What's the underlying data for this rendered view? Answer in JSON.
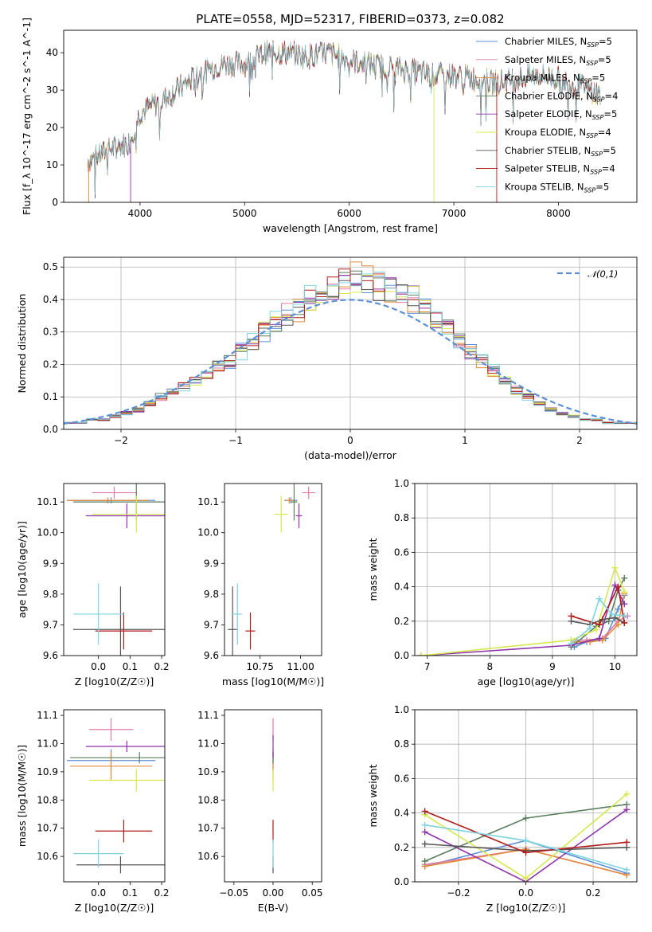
{
  "title": "PLATE=0558, MJD=52317, FIBERID=0373, z=0.082",
  "colors": {
    "Chabrier MILES": "#5b8fd6",
    "Salpeter MILES": "#e07aa6",
    "Kroupa MILES": "#e58a3a",
    "Chabrier ELODIE": "#5a7f5e",
    "Salpeter ELODIE": "#8e33a8",
    "Kroupa ELODIE": "#d7e84f",
    "Chabrier STELIB": "#555555",
    "Salpeter STELIB": "#b01c1c",
    "Kroupa STELIB": "#7ed3df"
  },
  "chart_data": [
    {
      "id": "spectrum",
      "type": "line",
      "xlabel": "wavelength [Angstrom, rest frame]",
      "ylabel": "Flux [f_λ 10^-17 erg cm^-2 s^-1 A^-1]",
      "xlim": [
        3270,
        8750
      ],
      "ylim": [
        0,
        46
      ],
      "xticks": [
        4000,
        5000,
        6000,
        7000,
        8000
      ],
      "yticks": [
        0,
        10,
        20,
        30,
        40
      ],
      "legend_position": "upper-right",
      "legend": [
        "Chabrier MILES, N_SSP=5",
        "Salpeter MILES, N_SSP=5",
        "Kroupa MILES, N_SSP=5",
        "Chabrier ELODIE, N_SSP=4",
        "Salpeter ELODIE, N_SSP=5",
        "Kroupa ELODIE, N_SSP=4",
        "Chabrier STELIB, N_SSP=5",
        "Salpeter STELIB, N_SSP=4",
        "Kroupa STELIB, N_SSP=5"
      ],
      "continuum": [
        [
          3500,
          11
        ],
        [
          3700,
          14
        ],
        [
          3900,
          16
        ],
        [
          4000,
          24
        ],
        [
          4200,
          27
        ],
        [
          4400,
          31
        ],
        [
          4600,
          35
        ],
        [
          4800,
          37
        ],
        [
          5000,
          37
        ],
        [
          5200,
          40
        ],
        [
          5400,
          40
        ],
        [
          5600,
          39
        ],
        [
          5800,
          40
        ],
        [
          6000,
          38
        ],
        [
          6200,
          37
        ],
        [
          6400,
          36
        ],
        [
          6600,
          35
        ],
        [
          6800,
          34
        ],
        [
          7000,
          34
        ],
        [
          7200,
          33
        ],
        [
          7400,
          32
        ],
        [
          7600,
          33
        ],
        [
          7800,
          34
        ],
        [
          8000,
          33
        ],
        [
          8200,
          31
        ],
        [
          8400,
          29
        ]
      ],
      "wavelength_range": [
        3500,
        8400
      ]
    },
    {
      "id": "normed-distribution",
      "type": "histogram",
      "xlabel": "(data-model)/error",
      "ylabel": "Normed distribution",
      "xlim": [
        -2.5,
        2.5
      ],
      "ylim": [
        0,
        0.53
      ],
      "xticks": [
        -2,
        -1,
        0,
        1,
        2
      ],
      "yticks": [
        0.0,
        0.1,
        0.2,
        0.3,
        0.4,
        0.5
      ],
      "legend_position": "upper-right",
      "legend": [
        "𝒩(0,1)"
      ],
      "bins_start": -2.5,
      "bin_width": 0.1,
      "hist_mean": [
        0.02,
        0.02,
        0.03,
        0.03,
        0.04,
        0.05,
        0.06,
        0.08,
        0.1,
        0.12,
        0.13,
        0.15,
        0.17,
        0.19,
        0.21,
        0.24,
        0.27,
        0.3,
        0.33,
        0.35,
        0.37,
        0.4,
        0.42,
        0.43,
        0.45,
        0.47,
        0.46,
        0.44,
        0.43,
        0.42,
        0.4,
        0.37,
        0.34,
        0.31,
        0.28,
        0.24,
        0.21,
        0.18,
        0.15,
        0.12,
        0.1,
        0.08,
        0.06,
        0.05,
        0.04,
        0.03,
        0.03,
        0.02,
        0.02,
        0.02
      ]
    },
    {
      "id": "age-vs-Z",
      "type": "scatter",
      "xlabel": "Z [log10(Z/Z☉)]",
      "ylabel": "age  [log10(age/yr)]",
      "xlim": [
        -0.11,
        0.21
      ],
      "ylim": [
        9.6,
        10.16
      ],
      "xticks": [
        0.0,
        0.1,
        0.2
      ],
      "yticks": [
        9.6,
        9.7,
        9.8,
        9.9,
        10.0,
        10.1
      ],
      "points": [
        {
          "model": "Chabrier MILES",
          "x": 0.04,
          "y": 10.105,
          "xerr": 0.14,
          "yerr": 0.01
        },
        {
          "model": "Salpeter MILES",
          "x": 0.05,
          "y": 10.13,
          "xerr": 0.07,
          "yerr": 0.02
        },
        {
          "model": "Kroupa MILES",
          "x": 0.03,
          "y": 10.105,
          "xerr": 0.13,
          "yerr": 0.01
        },
        {
          "model": "Chabrier ELODIE",
          "x": 0.12,
          "y": 10.1,
          "xerr": 0.2,
          "yerr": 0.06
        },
        {
          "model": "Salpeter ELODIE",
          "x": 0.09,
          "y": 10.055,
          "xerr": 0.13,
          "yerr": 0.04
        },
        {
          "model": "Kroupa ELODIE",
          "x": 0.12,
          "y": 10.06,
          "xerr": 0.14,
          "yerr": 0.06
        },
        {
          "model": "Chabrier STELIB",
          "x": 0.07,
          "y": 9.685,
          "xerr": 0.15,
          "yerr": 0.14
        },
        {
          "model": "Salpeter STELIB",
          "x": 0.08,
          "y": 9.68,
          "xerr": 0.09,
          "yerr": 0.06
        },
        {
          "model": "Kroupa STELIB",
          "x": 0.0,
          "y": 9.735,
          "xerr": 0.08,
          "yerr": 0.1
        }
      ]
    },
    {
      "id": "age-vs-mass",
      "type": "scatter",
      "xlabel": "mass [log10(M/M☉)]",
      "ylabel": "",
      "xlim": [
        10.53,
        11.13
      ],
      "ylim": [
        9.6,
        10.16
      ],
      "xticks": [
        10.75,
        11.0
      ],
      "yticks": [
        9.6,
        9.7,
        9.8,
        9.9,
        10.0,
        10.1
      ],
      "points": [
        {
          "model": "Chabrier MILES",
          "x": 10.94,
          "y": 10.105,
          "xerr": 0.04,
          "yerr": 0.01
        },
        {
          "model": "Salpeter MILES",
          "x": 11.05,
          "y": 10.13,
          "xerr": 0.04,
          "yerr": 0.02
        },
        {
          "model": "Kroupa MILES",
          "x": 10.93,
          "y": 10.105,
          "xerr": 0.03,
          "yerr": 0.01
        },
        {
          "model": "Chabrier ELODIE",
          "x": 10.96,
          "y": 10.1,
          "xerr": 0.02,
          "yerr": 0.06
        },
        {
          "model": "Salpeter ELODIE",
          "x": 10.99,
          "y": 10.055,
          "xerr": 0.02,
          "yerr": 0.04
        },
        {
          "model": "Kroupa ELODIE",
          "x": 10.88,
          "y": 10.06,
          "xerr": 0.04,
          "yerr": 0.06
        },
        {
          "model": "Chabrier STELIB",
          "x": 10.58,
          "y": 9.685,
          "xerr": 0.03,
          "yerr": 0.14
        },
        {
          "model": "Salpeter STELIB",
          "x": 10.69,
          "y": 9.68,
          "xerr": 0.03,
          "yerr": 0.06
        },
        {
          "model": "Kroupa STELIB",
          "x": 10.61,
          "y": 9.735,
          "xerr": 0.03,
          "yerr": 0.1
        }
      ]
    },
    {
      "id": "massweight-vs-age",
      "type": "line",
      "xlabel": "age  [log10(age/yr)]",
      "ylabel": "mass weight",
      "xlim": [
        6.8,
        10.35
      ],
      "ylim": [
        0,
        1
      ],
      "xticks": [
        7,
        8,
        9,
        10
      ],
      "yticks": [
        0.0,
        0.2,
        0.4,
        0.6,
        0.8,
        1.0
      ],
      "series": [
        {
          "model": "Chabrier MILES",
          "x": [
            9.35,
            9.55,
            9.85,
            10.05,
            10.15
          ],
          "y": [
            0.05,
            0.08,
            0.1,
            0.27,
            0.35
          ]
        },
        {
          "model": "Salpeter MILES",
          "x": [
            9.3,
            9.55,
            9.8,
            10.05,
            10.2
          ],
          "y": [
            0.09,
            0.09,
            0.1,
            0.2,
            0.23
          ]
        },
        {
          "model": "Kroupa MILES",
          "x": [
            9.35,
            9.6,
            9.8,
            10.05,
            10.15
          ],
          "y": [
            0.08,
            0.08,
            0.09,
            0.18,
            0.36
          ]
        },
        {
          "model": "Chabrier ELODIE",
          "x": [
            9.3,
            9.7,
            9.9,
            10.05,
            10.15
          ],
          "y": [
            0.05,
            0.17,
            0.2,
            0.38,
            0.45
          ]
        },
        {
          "model": "Salpeter ELODIE",
          "x": [
            6.9,
            9.3,
            9.75,
            10.0,
            10.15
          ],
          "y": [
            0.0,
            0.06,
            0.1,
            0.41,
            0.3
          ]
        },
        {
          "model": "Kroupa ELODIE",
          "x": [
            6.9,
            9.3,
            9.7,
            10.0,
            10.15
          ],
          "y": [
            0.0,
            0.09,
            0.15,
            0.51,
            0.37
          ]
        },
        {
          "model": "Chabrier STELIB",
          "x": [
            9.3,
            9.6,
            9.8,
            10.0,
            10.15
          ],
          "y": [
            0.2,
            0.18,
            0.21,
            0.22,
            0.19
          ]
        },
        {
          "model": "Salpeter STELIB",
          "x": [
            9.3,
            9.75,
            10.05,
            10.15
          ],
          "y": [
            0.23,
            0.18,
            0.4,
            0.19
          ]
        },
        {
          "model": "Kroupa STELIB",
          "x": [
            9.3,
            9.6,
            9.75,
            9.95,
            10.15
          ],
          "y": [
            0.07,
            0.16,
            0.33,
            0.24,
            0.23
          ]
        }
      ]
    },
    {
      "id": "mass-vs-Z",
      "type": "scatter",
      "xlabel": "Z [log10(Z/Z☉)]",
      "ylabel": "mass [log10(M/M☉)]",
      "xlim": [
        -0.11,
        0.21
      ],
      "ylim": [
        10.51,
        11.12
      ],
      "xticks": [
        0.0,
        0.1,
        0.2
      ],
      "yticks": [
        10.6,
        10.7,
        10.8,
        10.9,
        11.0,
        11.1
      ],
      "points": [
        {
          "model": "Chabrier MILES",
          "x": 0.04,
          "y": 10.94,
          "xerr": 0.14,
          "yerr": 0.04
        },
        {
          "model": "Salpeter MILES",
          "x": 0.04,
          "y": 11.05,
          "xerr": 0.07,
          "yerr": 0.04
        },
        {
          "model": "Kroupa MILES",
          "x": 0.04,
          "y": 10.92,
          "xerr": 0.13,
          "yerr": 0.05
        },
        {
          "model": "Chabrier ELODIE",
          "x": 0.13,
          "y": 10.95,
          "xerr": 0.22,
          "yerr": 0.02
        },
        {
          "model": "Salpeter ELODIE",
          "x": 0.09,
          "y": 10.99,
          "xerr": 0.13,
          "yerr": 0.02
        },
        {
          "model": "Kroupa ELODIE",
          "x": 0.12,
          "y": 10.87,
          "xerr": 0.15,
          "yerr": 0.04
        },
        {
          "model": "Chabrier STELIB",
          "x": 0.07,
          "y": 10.57,
          "xerr": 0.14,
          "yerr": 0.03
        },
        {
          "model": "Salpeter STELIB",
          "x": 0.08,
          "y": 10.69,
          "xerr": 0.09,
          "yerr": 0.04
        },
        {
          "model": "Kroupa STELIB",
          "x": 0.0,
          "y": 10.61,
          "xerr": 0.08,
          "yerr": 0.05
        }
      ]
    },
    {
      "id": "mass-vs-ebv",
      "type": "scatter",
      "xlabel": "E(B-V)",
      "ylabel": "",
      "xlim": [
        -0.062,
        0.062
      ],
      "ylim": [
        10.51,
        11.12
      ],
      "xticks": [
        -0.05,
        0.0,
        0.05
      ],
      "yticks": [
        10.6,
        10.7,
        10.8,
        10.9,
        11.0,
        11.1
      ],
      "points": [
        {
          "model": "Chabrier MILES",
          "x": 0.0,
          "y": 10.94,
          "xerr": 0.0,
          "yerr": 0.04
        },
        {
          "model": "Salpeter MILES",
          "x": 0.0,
          "y": 11.05,
          "xerr": 0.0,
          "yerr": 0.04
        },
        {
          "model": "Kroupa MILES",
          "x": 0.0,
          "y": 10.92,
          "xerr": 0.0,
          "yerr": 0.05
        },
        {
          "model": "Chabrier ELODIE",
          "x": 0.0,
          "y": 10.95,
          "xerr": 0.0,
          "yerr": 0.02
        },
        {
          "model": "Salpeter ELODIE",
          "x": 0.0,
          "y": 10.99,
          "xerr": 0.0,
          "yerr": 0.04
        },
        {
          "model": "Kroupa ELODIE",
          "x": 0.0,
          "y": 10.87,
          "xerr": 0.0,
          "yerr": 0.04
        },
        {
          "model": "Chabrier STELIB",
          "x": 0.0,
          "y": 10.57,
          "xerr": 0.0,
          "yerr": 0.03
        },
        {
          "model": "Salpeter STELIB",
          "x": 0.0,
          "y": 10.69,
          "xerr": 0.0,
          "yerr": 0.04
        },
        {
          "model": "Kroupa STELIB",
          "x": 0.0,
          "y": 10.61,
          "xerr": 0.0,
          "yerr": 0.05
        }
      ]
    },
    {
      "id": "massweight-vs-Z",
      "type": "line",
      "xlabel": "Z [log10(Z/Z☉)]",
      "ylabel": "mass weight",
      "xlim": [
        -0.33,
        0.33
      ],
      "ylim": [
        0,
        1
      ],
      "xticks": [
        -0.2,
        0.0,
        0.2
      ],
      "yticks": [
        0.0,
        0.2,
        0.4,
        0.6,
        0.8,
        1.0
      ],
      "series": [
        {
          "model": "Chabrier MILES",
          "x": [
            -0.3,
            0.0,
            0.3
          ],
          "y": [
            0.09,
            0.24,
            0.05
          ]
        },
        {
          "model": "Salpeter MILES",
          "x": [
            -0.3,
            0.0,
            0.3
          ],
          "y": [
            0.1,
            0.19,
            0.04
          ]
        },
        {
          "model": "Kroupa MILES",
          "x": [
            -0.3,
            0.0,
            0.3
          ],
          "y": [
            0.09,
            0.19,
            0.04
          ]
        },
        {
          "model": "Chabrier ELODIE",
          "x": [
            -0.3,
            0.0,
            0.3
          ],
          "y": [
            0.12,
            0.37,
            0.45
          ]
        },
        {
          "model": "Salpeter ELODIE",
          "x": [
            -0.3,
            0.0,
            0.3
          ],
          "y": [
            0.29,
            0.0,
            0.42
          ]
        },
        {
          "model": "Kroupa ELODIE",
          "x": [
            -0.3,
            0.0,
            0.3
          ],
          "y": [
            0.39,
            0.02,
            0.51
          ]
        },
        {
          "model": "Chabrier STELIB",
          "x": [
            -0.3,
            0.0,
            0.3
          ],
          "y": [
            0.22,
            0.18,
            0.2
          ]
        },
        {
          "model": "Salpeter STELIB",
          "x": [
            -0.3,
            0.0,
            0.3
          ],
          "y": [
            0.41,
            0.17,
            0.23
          ]
        },
        {
          "model": "Kroupa STELIB",
          "x": [
            -0.3,
            0.0,
            0.3
          ],
          "y": [
            0.33,
            0.24,
            0.07
          ]
        }
      ]
    }
  ]
}
